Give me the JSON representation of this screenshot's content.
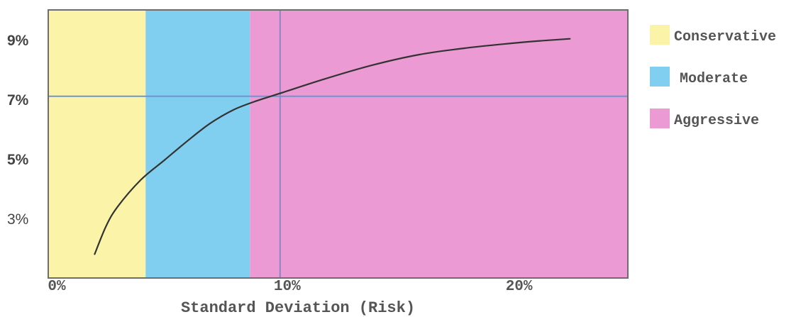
{
  "chart_data": {
    "type": "line",
    "xlabel": "Standard Deviation (Risk)",
    "ylabel": "",
    "xlim": [
      0,
      25
    ],
    "ylim": [
      1,
      10
    ],
    "x_ticks": [
      {
        "value": 0,
        "label": "0%"
      },
      {
        "value": 10,
        "label": "10%"
      },
      {
        "value": 20,
        "label": "20%"
      }
    ],
    "y_ticks": [
      {
        "value": 9,
        "label": "9%"
      },
      {
        "value": 7,
        "label": "7%"
      },
      {
        "value": 5,
        "label": "5%"
      },
      {
        "value": 3,
        "label": "3%"
      }
    ],
    "regions": [
      {
        "name": "Conservative",
        "x_start": 0,
        "x_end": 4.2,
        "color": "#fbf4a8"
      },
      {
        "name": "Moderate",
        "x_start": 4.2,
        "x_end": 8.7,
        "color": "#80cff0"
      },
      {
        "name": "Aggressive",
        "x_start": 8.7,
        "x_end": 25,
        "color": "#eb9ad3"
      }
    ],
    "reference_lines": {
      "horizontal_y": 7.1,
      "vertical_x": 10
    },
    "series": [
      {
        "color": "#333333",
        "x": [
          2.0,
          2.5,
          3.0,
          4.0,
          5.0,
          6.0,
          7.0,
          8.0,
          9.0,
          10.0,
          12.0,
          14.0,
          16.0,
          18.0,
          20.0,
          21.0,
          22.5
        ],
        "y": [
          1.8,
          2.75,
          3.4,
          4.3,
          4.95,
          5.6,
          6.2,
          6.65,
          6.95,
          7.2,
          7.7,
          8.15,
          8.5,
          8.72,
          8.88,
          8.95,
          9.03
        ]
      }
    ],
    "legend": {
      "placement": "right",
      "entries": [
        {
          "label": "Conservative",
          "color": "#fbf4a8"
        },
        {
          "label": "Moderate",
          "color": "#80cff0"
        },
        {
          "label": "Aggressive",
          "color": "#eb9ad3"
        }
      ]
    },
    "grid": false
  }
}
